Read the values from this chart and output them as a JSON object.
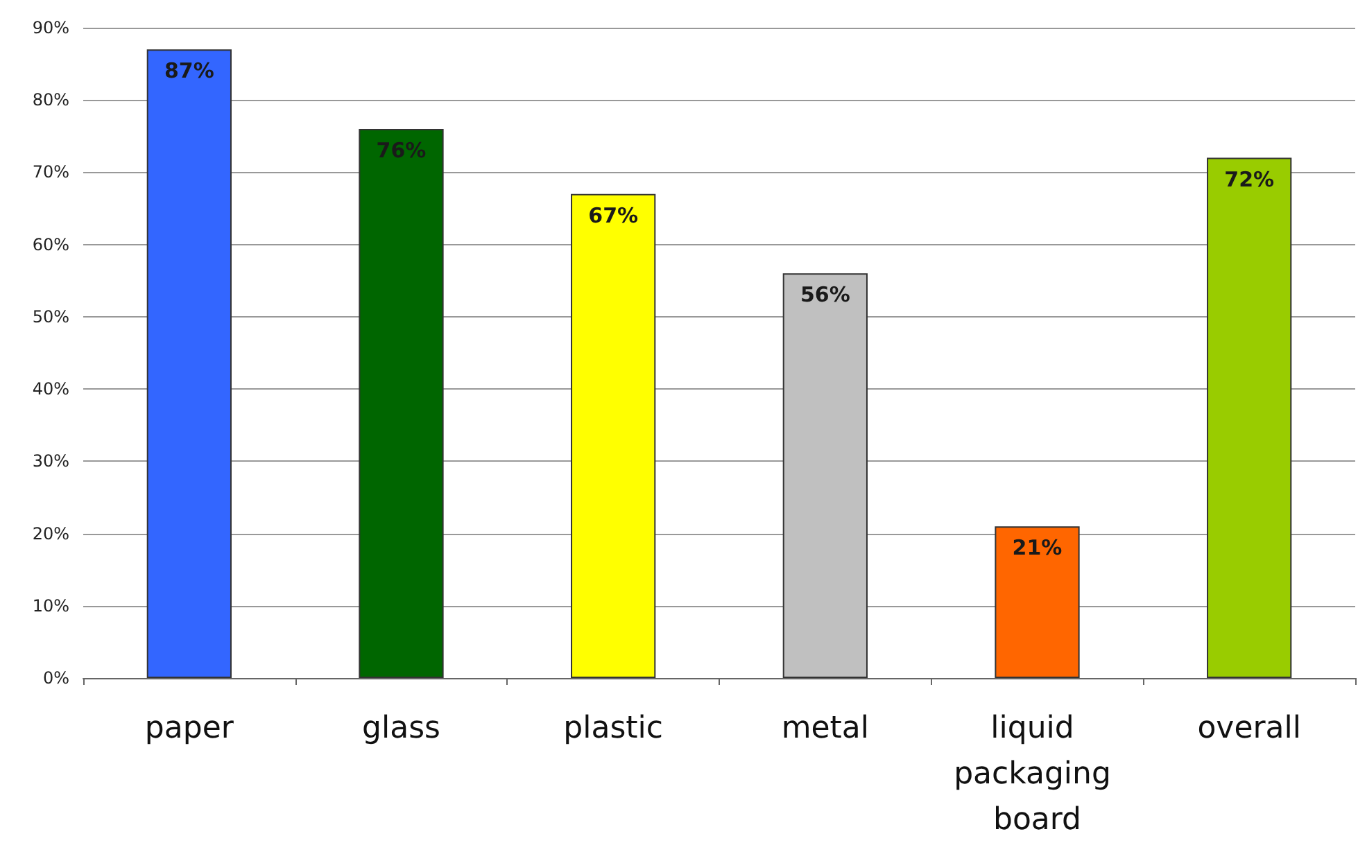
{
  "chart_data": {
    "type": "bar",
    "categories": [
      "paper",
      "glass",
      "plastic",
      "metal",
      "liquid packaging board",
      "overall"
    ],
    "values": [
      87,
      76,
      67,
      56,
      21,
      72
    ],
    "colors": [
      "#3366ff",
      "#006600",
      "#ffff00",
      "#c0c0c0",
      "#ff6600",
      "#99cc00"
    ],
    "value_labels": [
      "87%",
      "76%",
      "67%",
      "56%",
      "21%",
      "72%"
    ],
    "ylim": [
      0,
      90
    ],
    "yticks": [
      {
        "value": 0,
        "label": "0%"
      },
      {
        "value": 10,
        "label": "10%"
      },
      {
        "value": 20,
        "label": "20%"
      },
      {
        "value": 30,
        "label": "30%"
      },
      {
        "value": 40,
        "label": "40%"
      },
      {
        "value": 50,
        "label": "50%"
      },
      {
        "value": 60,
        "label": "60%"
      },
      {
        "value": 70,
        "label": "70%"
      },
      {
        "value": 80,
        "label": "80%"
      },
      {
        "value": 90,
        "label": "90%"
      }
    ],
    "grid": "y"
  }
}
